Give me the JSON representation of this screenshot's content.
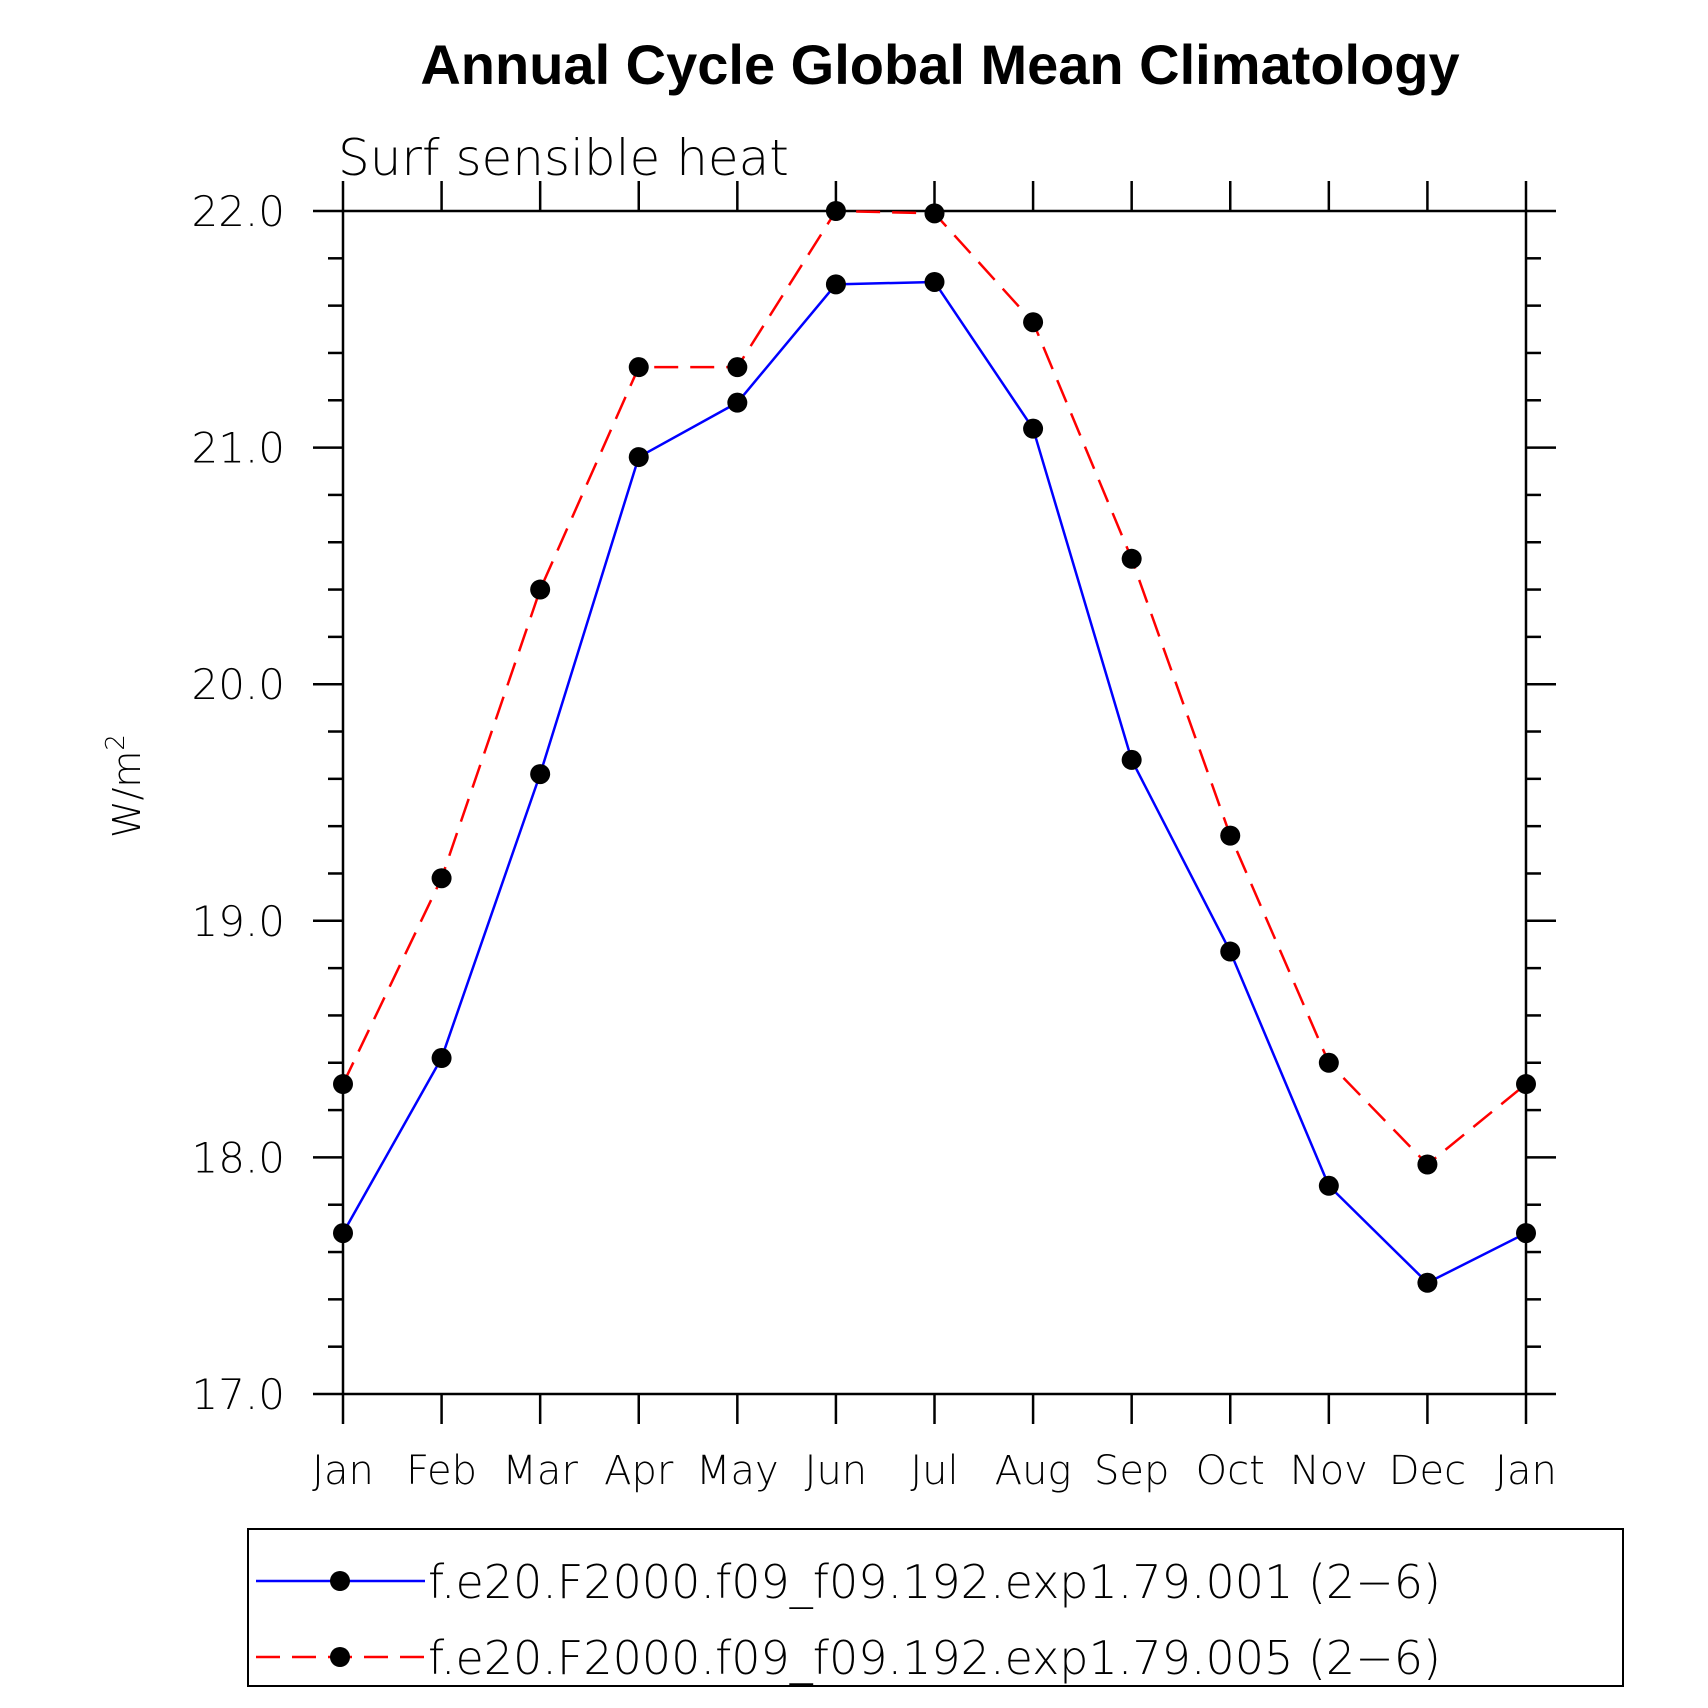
{
  "chart_data": {
    "type": "line",
    "title": "Annual Cycle Global Mean Climatology",
    "subtitle": "Surf sensible heat",
    "ylabel": "W/m",
    "ylabel_sup": "2",
    "xlabel": "",
    "categories": [
      "Jan",
      "Feb",
      "Mar",
      "Apr",
      "May",
      "Jun",
      "Jul",
      "Aug",
      "Sep",
      "Oct",
      "Nov",
      "Dec",
      "Jan"
    ],
    "ylim": [
      17.0,
      22.0
    ],
    "yticks": [
      "17.0",
      "18.0",
      "19.0",
      "20.0",
      "21.0",
      "22.0"
    ],
    "grid": false,
    "legend_position": "bottom",
    "series": [
      {
        "name": "f.e20.F2000.f09_f09.192.exp1.79.001 (2−6)",
        "color": "#0000ff",
        "dash": "solid",
        "values": [
          17.68,
          18.42,
          19.62,
          20.96,
          21.19,
          21.69,
          21.7,
          21.08,
          19.68,
          18.87,
          17.88,
          17.47,
          17.68
        ]
      },
      {
        "name": "f.e20.F2000.f09_f09.192.exp1.79.005 (2−6)",
        "color": "#ff0000",
        "dash": "dashed",
        "values": [
          18.31,
          19.18,
          20.4,
          21.34,
          21.34,
          22.0,
          21.99,
          21.53,
          20.53,
          19.36,
          18.4,
          17.97,
          18.31
        ]
      }
    ]
  }
}
